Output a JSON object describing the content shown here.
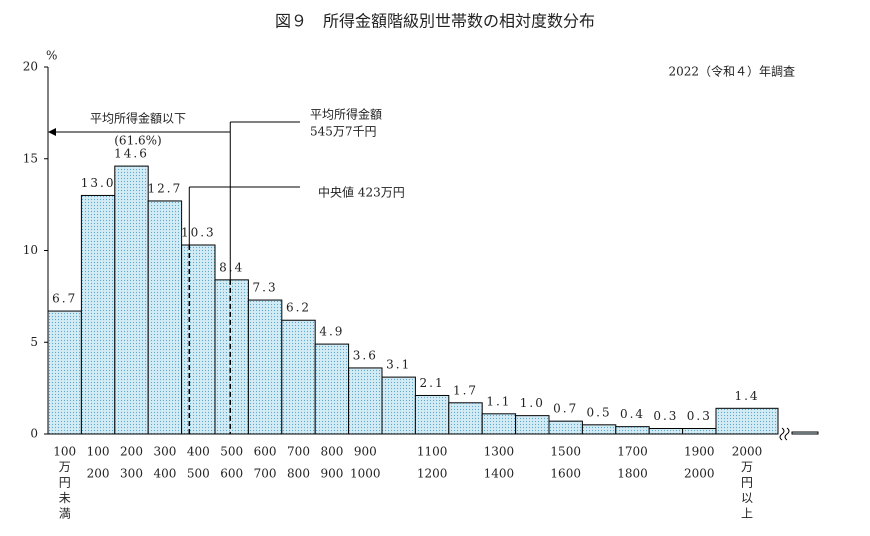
{
  "chart_data": {
    "type": "bar",
    "title": "図９　所得金額階級別世帯数の相対度数分布",
    "subtitle": "2022（令和４）年調査",
    "y_unit": "%",
    "categories": [
      [
        "100",
        "万",
        "円",
        "未",
        "満"
      ],
      [
        "100",
        "200"
      ],
      [
        "200",
        "300"
      ],
      [
        "300",
        "400"
      ],
      [
        "400",
        "500"
      ],
      [
        "500",
        "600"
      ],
      [
        "600",
        "700"
      ],
      [
        "700",
        "800"
      ],
      [
        "800",
        "900"
      ],
      [
        "900",
        "1000"
      ],
      null,
      [
        "1100",
        "1200"
      ],
      null,
      [
        "1300",
        "1400"
      ],
      null,
      [
        "1500",
        "1600"
      ],
      null,
      [
        "1700",
        "1800"
      ],
      null,
      [
        "1900",
        "2000"
      ],
      [
        "2000",
        "万",
        "円",
        "以",
        "上"
      ]
    ],
    "values": [
      6.7,
      13.0,
      14.6,
      12.7,
      10.3,
      8.4,
      7.3,
      6.2,
      4.9,
      3.6,
      3.1,
      2.1,
      1.7,
      1.1,
      1.0,
      0.7,
      0.5,
      0.4,
      0.3,
      0.3,
      1.4
    ],
    "value_labels": [
      "6.7",
      "13.0",
      "14.6",
      "12.7",
      "10.3",
      "8.4",
      "7.3",
      "6.2",
      "4.9",
      "3.6",
      "3.1",
      "2.1",
      "1.7",
      "1.1",
      "1.0",
      "0.7",
      "0.5",
      "0.4",
      "0.3",
      "0.3",
      "1.4"
    ],
    "color": "#d3ebf5",
    "ylim": [
      0,
      20
    ],
    "yticks": [
      0,
      5,
      10,
      15,
      20
    ],
    "mean": {
      "value": 545.7,
      "label": [
        "平均所得金額",
        "545万7千円"
      ]
    },
    "below_mean": [
      "平均所得金額以下",
      "(61.6%)"
    ],
    "median": {
      "value": 423,
      "label": "中央値 423万円"
    }
  }
}
